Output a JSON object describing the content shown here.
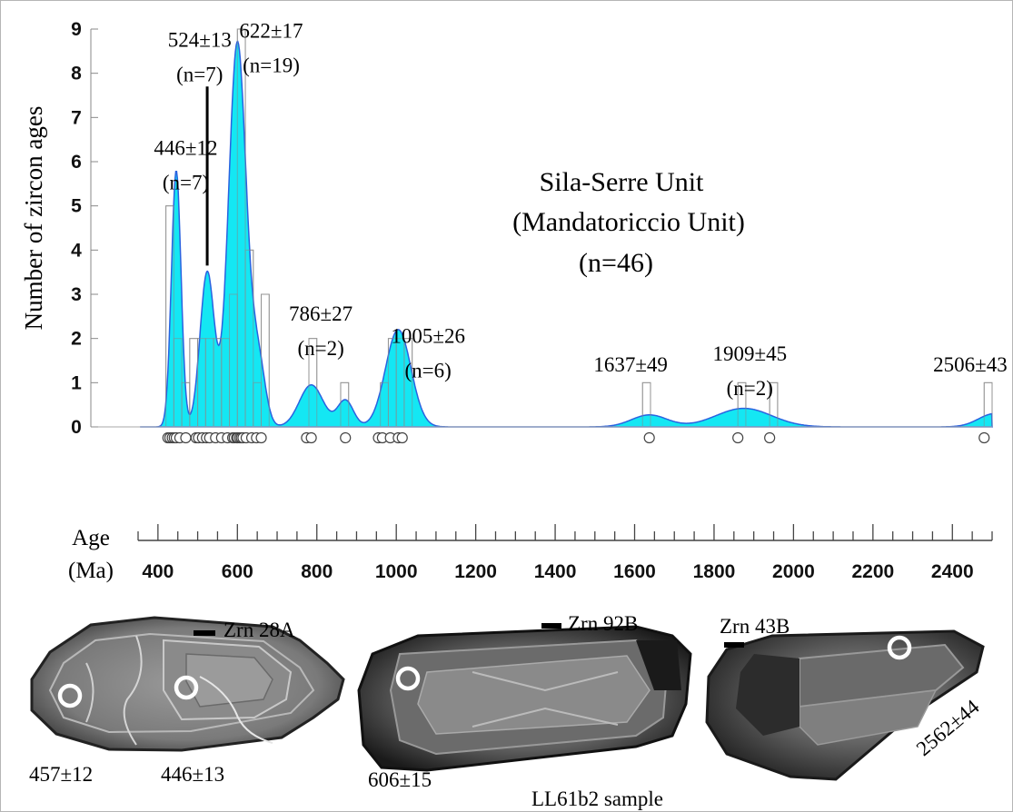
{
  "chart_data": {
    "type": "histogram",
    "ylabel": "Number of zircon ages",
    "xlabel_line1": "Age",
    "xlabel_line2": "(Ma)",
    "xlim": [
      350,
      2500
    ],
    "ylim": [
      0,
      9
    ],
    "y_ticks": [
      "0",
      "1",
      "2",
      "3",
      "4",
      "5",
      "6",
      "7",
      "8",
      "9"
    ],
    "x_ticks": [
      "400",
      "600",
      "800",
      "1000",
      "1200",
      "1400",
      "1600",
      "1800",
      "2000",
      "2200",
      "2400"
    ],
    "title_lines": [
      "Sila-Serre Unit",
      "(Mandatoriccio Unit)",
      "(n=46)"
    ],
    "fill_color": "#00e5f2",
    "line_color": "#2a62e0",
    "bin_width": 20,
    "histogram_bins": [
      {
        "start": 420,
        "count": 5
      },
      {
        "start": 440,
        "count": 2
      },
      {
        "start": 460,
        "count": 1
      },
      {
        "start": 480,
        "count": 2
      },
      {
        "start": 500,
        "count": 2
      },
      {
        "start": 520,
        "count": 2
      },
      {
        "start": 540,
        "count": 2
      },
      {
        "start": 560,
        "count": 2
      },
      {
        "start": 580,
        "count": 3
      },
      {
        "start": 600,
        "count": 9
      },
      {
        "start": 620,
        "count": 4
      },
      {
        "start": 640,
        "count": 1
      },
      {
        "start": 660,
        "count": 3
      },
      {
        "start": 780,
        "count": 2
      },
      {
        "start": 860,
        "count": 1
      },
      {
        "start": 960,
        "count": 1
      },
      {
        "start": 980,
        "count": 2
      },
      {
        "start": 1000,
        "count": 2
      },
      {
        "start": 1020,
        "count": 2
      },
      {
        "start": 1620,
        "count": 1
      },
      {
        "start": 1860,
        "count": 1
      },
      {
        "start": 1940,
        "count": 1
      },
      {
        "start": 2480,
        "count": 1
      }
    ],
    "density_peaks": [
      {
        "age": 446,
        "height": 5.8,
        "sigma": 12
      },
      {
        "age": 524,
        "height": 3.5,
        "sigma": 18
      },
      {
        "age": 600,
        "height": 8.7,
        "sigma": 22
      },
      {
        "age": 652,
        "height": 1.5,
        "sigma": 18
      },
      {
        "age": 786,
        "height": 0.95,
        "sigma": 30
      },
      {
        "age": 872,
        "height": 0.6,
        "sigma": 20
      },
      {
        "age": 1005,
        "height": 2.2,
        "sigma": 32
      },
      {
        "age": 1637,
        "height": 0.27,
        "sigma": 45
      },
      {
        "age": 1875,
        "height": 0.42,
        "sigma": 70
      },
      {
        "age": 2506,
        "height": 0.3,
        "sigma": 40
      }
    ],
    "single_ages": [
      425,
      430,
      436,
      441,
      446,
      455,
      470,
      496,
      502,
      512,
      522,
      530,
      545,
      560,
      575,
      588,
      592,
      598,
      601,
      606,
      610,
      614,
      622,
      636,
      648,
      660,
      774,
      786,
      872,
      955,
      965,
      985,
      1005,
      1015,
      1637,
      1860,
      1940,
      2480
    ],
    "annotations": [
      {
        "lines": [
          "446±12",
          "(n=7)"
        ],
        "age": 470,
        "y": 6.15
      },
      {
        "lines": [
          "524±13",
          "(n=7)"
        ],
        "age": 505,
        "y": 8.6
      },
      {
        "lines": [
          "622±17",
          "(n=19)"
        ],
        "age": 685,
        "y": 8.8
      },
      {
        "lines": [
          "786±27",
          "(n=2)"
        ],
        "age": 810,
        "y": 2.4
      },
      {
        "lines": [
          "1005±26",
          "(n=6)"
        ],
        "age": 1080,
        "y": 1.9
      },
      {
        "lines": [
          "1637±49"
        ],
        "age": 1590,
        "y": 1.25
      },
      {
        "lines": [
          "1909±45",
          "(n=2)"
        ],
        "age": 1890,
        "y": 1.5
      },
      {
        "lines": [
          "2506±43"
        ],
        "age": 2445,
        "y": 1.25
      }
    ]
  },
  "crystals": [
    {
      "label": "Zrn 28A",
      "ages": [
        "457±12",
        "446±13"
      ]
    },
    {
      "label": "Zrn 92B",
      "ages": [
        "606±15"
      ]
    },
    {
      "label": "Zrn 43B",
      "ages": [
        "2562±44"
      ]
    }
  ],
  "sample_label": "LL61b2 sample"
}
